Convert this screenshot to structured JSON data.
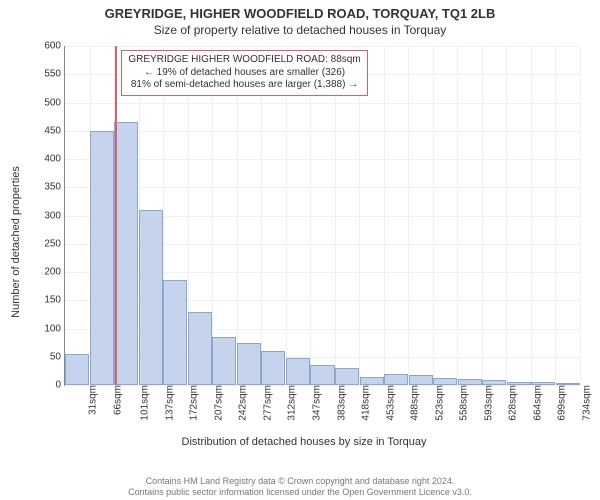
{
  "chart": {
    "type": "histogram",
    "title_main": "GREYRIDGE, HIGHER WOODFIELD ROAD, TORQUAY, TQ1 2LB",
    "title_sub": "Size of property relative to detached houses in Torquay",
    "title_fontsize_main": 13,
    "title_fontsize_sub": 12,
    "ylabel": "Number of detached properties",
    "xlabel": "Distribution of detached houses by size in Torquay",
    "label_fontsize": 11,
    "background_color": "#ffffff",
    "grid_color": "#eef0f4",
    "axis_color": "#888888",
    "bar_fill": "#c5d4ec",
    "bar_stroke": "#8fa6cc",
    "marker_color": "#d4626a",
    "marker_x_category_index": 2,
    "ylim": [
      0,
      600
    ],
    "ytick_step": 50,
    "x_categories": [
      "31sqm",
      "66sqm",
      "101sqm",
      "137sqm",
      "172sqm",
      "207sqm",
      "242sqm",
      "277sqm",
      "312sqm",
      "347sqm",
      "383sqm",
      "418sqm",
      "453sqm",
      "488sqm",
      "523sqm",
      "558sqm",
      "593sqm",
      "628sqm",
      "664sqm",
      "699sqm",
      "734sqm"
    ],
    "values": [
      55,
      450,
      465,
      310,
      185,
      130,
      85,
      75,
      60,
      48,
      35,
      30,
      15,
      20,
      18,
      12,
      10,
      8,
      5,
      6,
      4
    ],
    "bar_width_ratio": 0.98,
    "annotation": {
      "line1": "GREYRIDGE HIGHER WOODFIELD ROAD: 88sqm",
      "line2": "← 19% of detached houses are smaller (326)",
      "line3": "81% of semi-detached houses are larger (1,388) →",
      "border_color": "#d4626a",
      "fontsize": 10
    }
  },
  "footer": {
    "line1": "Contains HM Land Registry data © Crown copyright and database right 2024.",
    "line2": "Contains public sector information licensed under the Open Government Licence v3.0.",
    "color": "#777777",
    "fontsize": 9
  }
}
